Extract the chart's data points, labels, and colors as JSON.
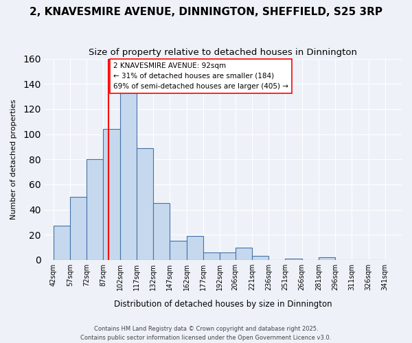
{
  "title": "2, KNAVESMIRE AVENUE, DINNINGTON, SHEFFIELD, S25 3RP",
  "subtitle": "Size of property relative to detached houses in Dinnington",
  "xlabel": "Distribution of detached houses by size in Dinnington",
  "ylabel": "Number of detached properties",
  "bar_values": [
    27,
    50,
    80,
    104,
    133,
    89,
    45,
    15,
    19,
    6,
    6,
    10,
    3,
    0,
    1,
    0,
    2,
    0,
    0,
    0
  ],
  "bin_lefts": [
    42,
    57,
    72,
    87,
    102,
    117,
    132,
    147,
    162,
    177,
    192,
    206,
    221,
    236,
    251,
    266,
    281,
    296,
    311,
    326
  ],
  "bin_labels": [
    "42sqm",
    "57sqm",
    "72sqm",
    "87sqm",
    "102sqm",
    "117sqm",
    "132sqm",
    "147sqm",
    "162sqm",
    "177sqm",
    "192sqm",
    "206sqm",
    "221sqm",
    "236sqm",
    "251sqm",
    "266sqm",
    "281sqm",
    "296sqm",
    "311sqm",
    "326sqm",
    "341sqm"
  ],
  "bar_color": "#c5d8ed",
  "bar_edge_color": "#4472a8",
  "bin_width": 15,
  "ylim": [
    0,
    160
  ],
  "yticks": [
    0,
    20,
    40,
    60,
    80,
    100,
    120,
    140,
    160
  ],
  "red_line_x": 92,
  "annotation_title": "2 KNAVESMIRE AVENUE: 92sqm",
  "annotation_line1": "← 31% of detached houses are smaller (184)",
  "annotation_line2": "69% of semi-detached houses are larger (405) →",
  "footer1": "Contains HM Land Registry data © Crown copyright and database right 2025.",
  "footer2": "Contains public sector information licensed under the Open Government Licence v3.0.",
  "background_color": "#eef2f8",
  "grid_color": "#ffffff",
  "title_fontsize": 11,
  "subtitle_fontsize": 9.5
}
